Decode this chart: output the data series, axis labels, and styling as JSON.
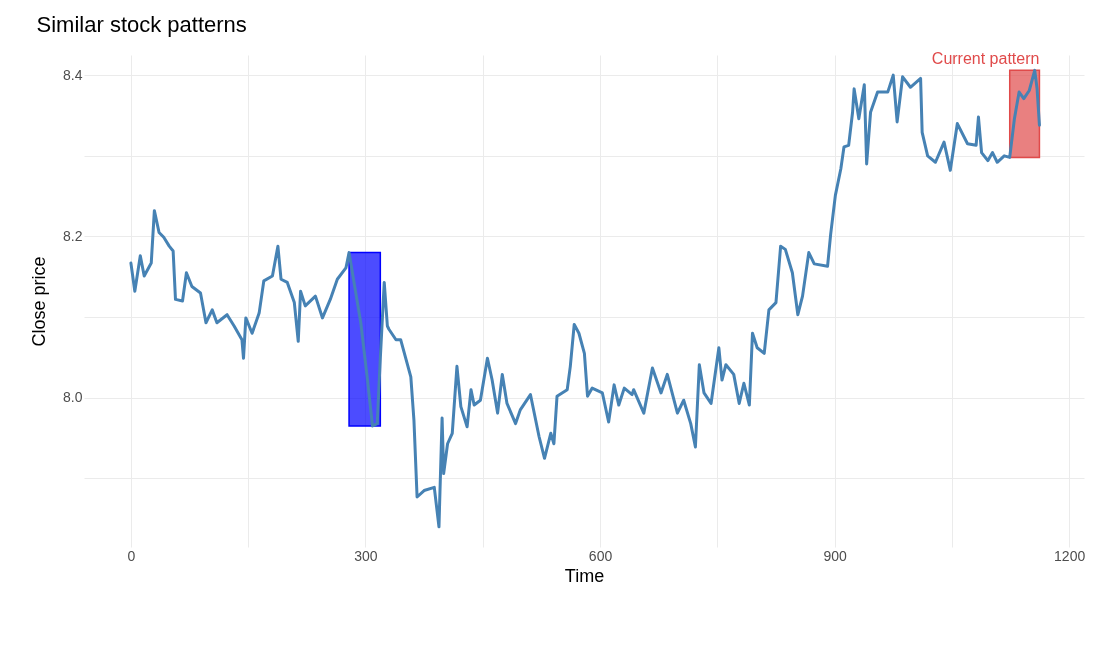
{
  "chart_data": {
    "type": "line",
    "title": "Similar stock patterns",
    "xlabel": "Time",
    "ylabel": "Close price",
    "series": [
      {
        "color": "#4682b4",
        "x": [
          0,
          5,
          12,
          17,
          26,
          30,
          36,
          42,
          49,
          54,
          57,
          66,
          71,
          78,
          89,
          96,
          104,
          110,
          123,
          132,
          142,
          144,
          147,
          155,
          164,
          170,
          181,
          188,
          192,
          200,
          209,
          214,
          217,
          223,
          236,
          245,
          255,
          264,
          275,
          279,
          294,
          302,
          309,
          315,
          319,
          324,
          328,
          330,
          339,
          345,
          358,
          362,
          366,
          375,
          388,
          394,
          398,
          400,
          405,
          411,
          417,
          422,
          430,
          435,
          439,
          447,
          456,
          462,
          469,
          475,
          481,
          492,
          498,
          511,
          522,
          529,
          537,
          541,
          545,
          558,
          562,
          567,
          573,
          580,
          584,
          590,
          603,
          611,
          618,
          624,
          631,
          641,
          643,
          656,
          667,
          678,
          686,
          699,
          707,
          716,
          722,
          727,
          733,
          742,
          752,
          756,
          761,
          771,
          778,
          784,
          791,
          795,
          801,
          810,
          816,
          825,
          831,
          837,
          846,
          853,
          859,
          867,
          874,
          891,
          895,
          901,
          908,
          912,
          918,
          923,
          925,
          931,
          938,
          941,
          946,
          955,
          968,
          975,
          980,
          987,
          997,
          1010,
          1012,
          1019,
          1029,
          1040,
          1048,
          1057,
          1070,
          1081,
          1084,
          1088,
          1096,
          1102,
          1108,
          1117,
          1124,
          1130,
          1136,
          1142,
          1149,
          1156,
          1159,
          1162
        ],
        "values": [
          8.167,
          8.132,
          8.176,
          8.151,
          8.167,
          8.232,
          8.205,
          8.199,
          8.188,
          8.182,
          8.122,
          8.12,
          8.155,
          8.138,
          8.13,
          8.093,
          8.109,
          8.093,
          8.103,
          8.089,
          8.072,
          8.049,
          8.099,
          8.08,
          8.105,
          8.145,
          8.151,
          8.188,
          8.147,
          8.143,
          8.118,
          8.07,
          8.132,
          8.114,
          8.126,
          8.099,
          8.122,
          8.147,
          8.161,
          8.18,
          8.093,
          8.027,
          7.965,
          7.968,
          8.049,
          8.143,
          8.089,
          8.085,
          8.072,
          8.072,
          8.026,
          7.972,
          7.877,
          7.885,
          7.889,
          7.84,
          7.975,
          7.906,
          7.943,
          7.956,
          8.039,
          7.989,
          7.964,
          8.01,
          7.991,
          7.997,
          8.049,
          8.022,
          7.981,
          8.029,
          7.993,
          7.968,
          7.985,
          8.004,
          7.952,
          7.925,
          7.956,
          7.943,
          8.002,
          8.01,
          8.039,
          8.091,
          8.08,
          8.055,
          8.002,
          8.012,
          8.006,
          7.97,
          8.016,
          7.991,
          8.012,
          8.004,
          8.01,
          7.981,
          8.037,
          8.006,
          8.029,
          7.981,
          7.997,
          7.968,
          7.939,
          8.041,
          8.006,
          7.993,
          8.062,
          8.022,
          8.041,
          8.029,
          7.993,
          8.018,
          7.991,
          8.08,
          8.062,
          8.055,
          8.109,
          8.118,
          8.188,
          8.184,
          8.155,
          8.103,
          8.126,
          8.18,
          8.166,
          8.163,
          8.203,
          8.251,
          8.284,
          8.311,
          8.313,
          8.354,
          8.383,
          8.346,
          8.388,
          8.29,
          8.354,
          8.379,
          8.379,
          8.4,
          8.342,
          8.398,
          8.385,
          8.396,
          8.329,
          8.3,
          8.292,
          8.317,
          8.282,
          8.34,
          8.315,
          8.313,
          8.348,
          8.304,
          8.294,
          8.304,
          8.292,
          8.3,
          8.298,
          8.346,
          8.379,
          8.371,
          8.381,
          8.406,
          8.383,
          8.338
        ]
      }
    ],
    "bands": [
      {
        "axis": "x",
        "from": 279,
        "to": 319,
        "color": "#0000ff"
      },
      {
        "axis": "x",
        "from": 1124,
        "to": 1162,
        "color": "#e04a4a",
        "label": "Current pattern"
      }
    ],
    "xlim": [
      -60,
      1219
    ],
    "ylim": [
      7.815,
      8.425
    ],
    "xticks": [
      0,
      {
        "value": 150,
        "label": null
      },
      300,
      {
        "value": 450,
        "label": null
      },
      600,
      {
        "value": 750,
        "label": null
      },
      900,
      {
        "value": 1050,
        "label": null
      },
      1200
    ],
    "yticks": [
      {
        "value": 7.9,
        "label": null
      },
      {
        "value": 8.0,
        "label": "8.0"
      },
      {
        "value": 8.1,
        "label": null
      },
      {
        "value": 8.2,
        "label": "8.2"
      },
      {
        "value": 8.3,
        "label": null
      },
      {
        "value": 8.4,
        "label": "8.4"
      }
    ],
    "grid": true
  }
}
